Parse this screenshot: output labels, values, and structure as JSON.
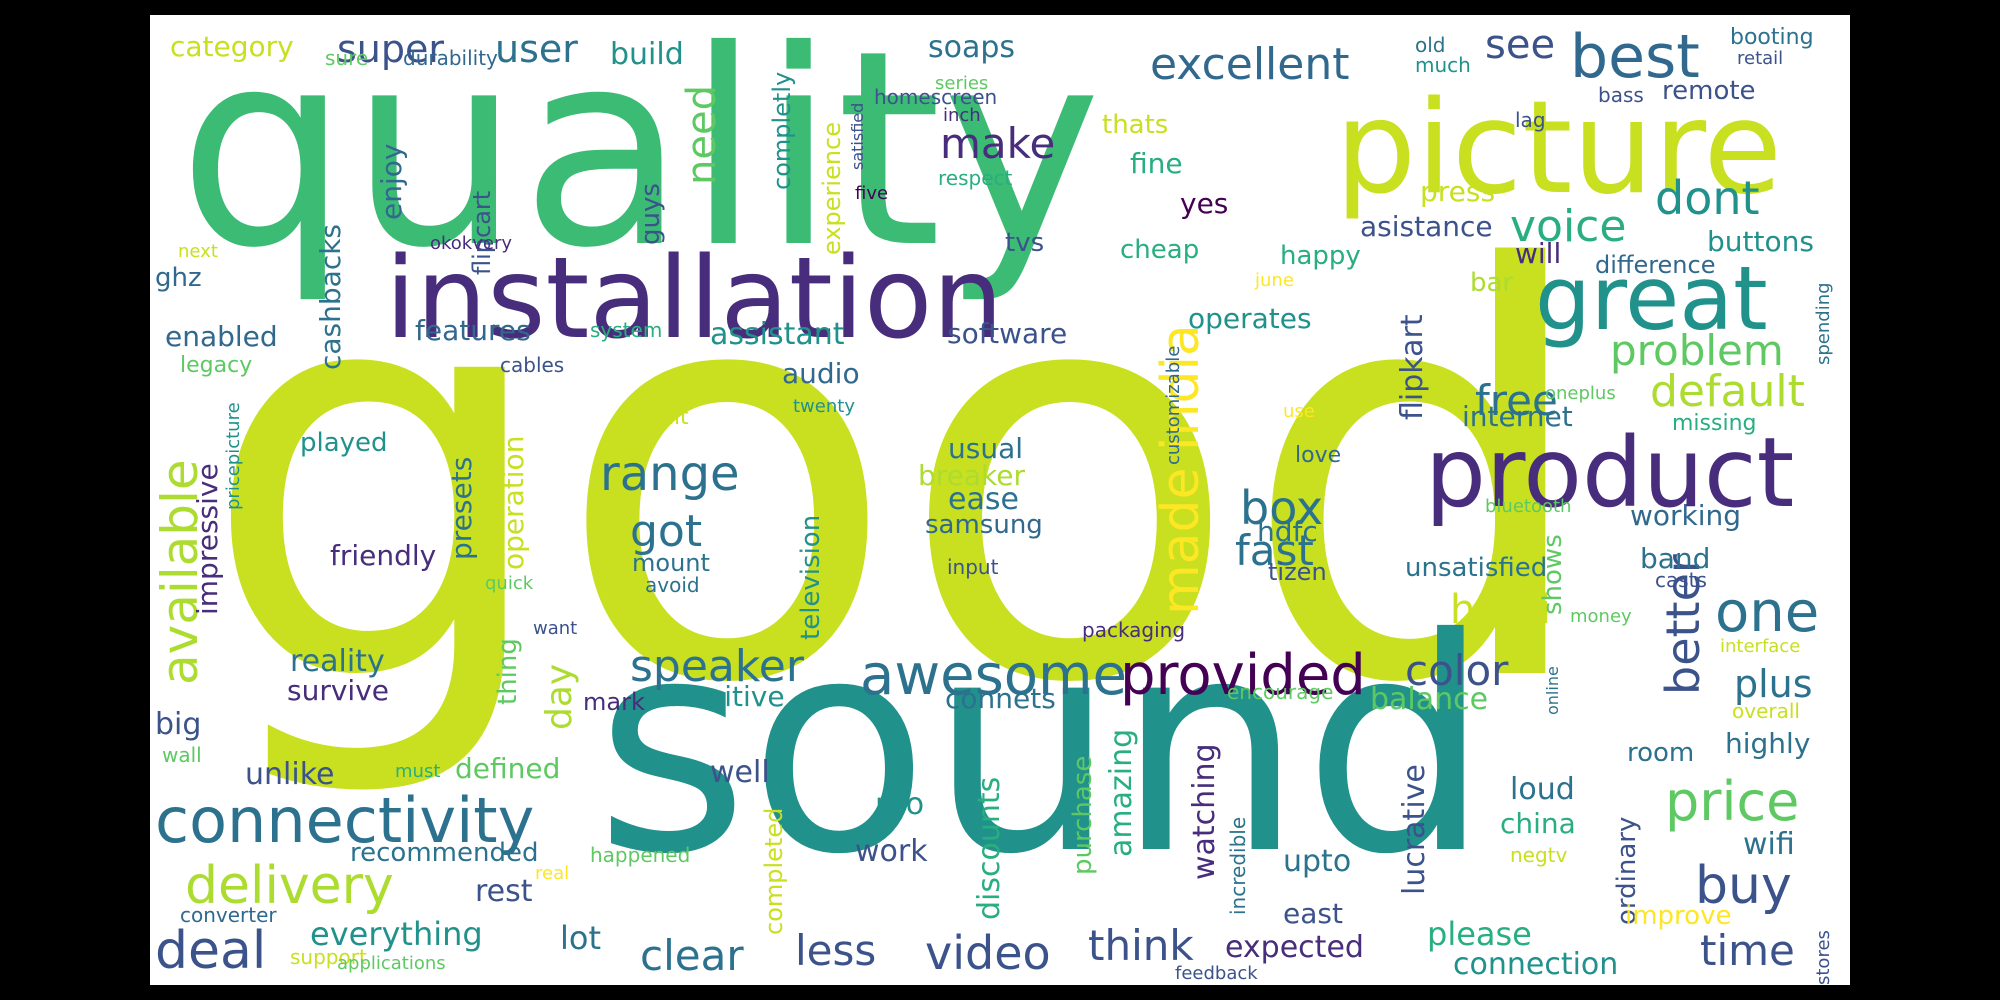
{
  "palette": [
    "#440154",
    "#472d7b",
    "#3b528b",
    "#2c728e",
    "#21918c",
    "#28ae80",
    "#5ec962",
    "#addc30",
    "#c8e020",
    "#fde725"
  ],
  "words": [
    {
      "id": "good",
      "text": "good",
      "color": "#c8e020"
    },
    {
      "id": "quality",
      "text": "quality",
      "color": "#3cbb75"
    },
    {
      "id": "sound",
      "text": "sound",
      "color": "#21918c"
    },
    {
      "id": "installation",
      "text": "installation",
      "color": "#472d7b"
    },
    {
      "id": "picture",
      "text": "picture",
      "color": "#c8e020"
    },
    {
      "id": "great",
      "text": "great",
      "color": "#21918c"
    },
    {
      "id": "product",
      "text": "product",
      "color": "#472d7b"
    },
    {
      "id": "best",
      "text": "best",
      "color": "#31688e"
    },
    {
      "id": "awesome",
      "text": "awesome",
      "color": "#2c728e"
    },
    {
      "id": "provided",
      "text": "provided",
      "color": "#440154"
    },
    {
      "id": "connectivity",
      "text": "connectivity",
      "color": "#2c728e"
    },
    {
      "id": "delivery",
      "text": "delivery",
      "color": "#addc30"
    },
    {
      "id": "excellent",
      "text": "excellent",
      "color": "#31688e"
    },
    {
      "id": "price",
      "text": "price",
      "color": "#5ec962"
    },
    {
      "id": "deal",
      "text": "deal",
      "color": "#3b528b"
    },
    {
      "id": "video",
      "text": "video",
      "color": "#3b528b"
    },
    {
      "id": "buy",
      "text": "buy",
      "color": "#3b528b"
    },
    {
      "id": "one",
      "text": "one",
      "color": "#2c728e"
    },
    {
      "id": "clear",
      "text": "clear",
      "color": "#2c728e"
    },
    {
      "id": "less",
      "text": "less",
      "color": "#3b528b"
    },
    {
      "id": "think",
      "text": "think",
      "color": "#3b528b"
    },
    {
      "id": "time",
      "text": "time",
      "color": "#3b528b"
    },
    {
      "id": "dont",
      "text": "dont",
      "color": "#21918c"
    },
    {
      "id": "voice",
      "text": "voice",
      "color": "#28ae80"
    },
    {
      "id": "problem",
      "text": "problem",
      "color": "#5ec962"
    },
    {
      "id": "default",
      "text": "default",
      "color": "#addc30"
    },
    {
      "id": "range",
      "text": "range",
      "color": "#2c728e"
    },
    {
      "id": "speaker",
      "text": "speaker",
      "color": "#2c728e"
    },
    {
      "id": "color",
      "text": "color",
      "color": "#3b528b"
    },
    {
      "id": "made-india",
      "text": "made india",
      "color": "#fde725"
    },
    {
      "id": "available",
      "text": "available",
      "color": "#addc30"
    },
    {
      "id": "box",
      "text": "box",
      "color": "#2c728e"
    },
    {
      "id": "fast",
      "text": "fast",
      "color": "#2c728e"
    },
    {
      "id": "got",
      "text": "got",
      "color": "#2c728e"
    },
    {
      "id": "free",
      "text": "free",
      "color": "#2c728e"
    },
    {
      "id": "better",
      "text": "better",
      "color": "#3b528b"
    },
    {
      "id": "make",
      "text": "make",
      "color": "#472d7b"
    },
    {
      "id": "need",
      "text": "need",
      "color": "#5ec962"
    },
    {
      "id": "super",
      "text": "super",
      "color": "#3b528b"
    },
    {
      "id": "user",
      "text": "user",
      "color": "#2c728e"
    },
    {
      "id": "see",
      "text": "see",
      "color": "#3b528b"
    },
    {
      "id": "hdmi",
      "text": "hdmi",
      "color": "#c8e020"
    },
    {
      "id": "plus",
      "text": "plus",
      "color": "#2c728e"
    },
    {
      "id": "category",
      "text": "category",
      "color": "#c8e020"
    },
    {
      "id": "soaps",
      "text": "soaps",
      "color": "#2c728e"
    },
    {
      "id": "build",
      "text": "build",
      "color": "#21918c"
    },
    {
      "id": "enjoy",
      "text": "enjoy",
      "color": "#31688e"
    },
    {
      "id": "flipcart",
      "text": "flipcart",
      "color": "#3b528b"
    },
    {
      "id": "completly",
      "text": "completly",
      "color": "#21918c"
    },
    {
      "id": "experience",
      "text": "experience",
      "color": "#c8e020"
    },
    {
      "id": "cashbacks",
      "text": "cashbacks",
      "color": "#2c728e"
    },
    {
      "id": "ghz",
      "text": "ghz",
      "color": "#31688e"
    },
    {
      "id": "guys",
      "text": "guys",
      "color": "#3b528b"
    },
    {
      "id": "thats",
      "text": "thats",
      "color": "#c8e020"
    },
    {
      "id": "fine",
      "text": "fine",
      "color": "#28ae80"
    },
    {
      "id": "press",
      "text": "press",
      "color": "#c8e020"
    },
    {
      "id": "yes",
      "text": "yes",
      "color": "#440154"
    },
    {
      "id": "asistance",
      "text": "asistance",
      "color": "#3b528b"
    },
    {
      "id": "tvs",
      "text": "tvs",
      "color": "#3b528b"
    },
    {
      "id": "cheap",
      "text": "cheap",
      "color": "#28ae80"
    },
    {
      "id": "will",
      "text": "will",
      "color": "#472d7b"
    },
    {
      "id": "happy",
      "text": "happy",
      "color": "#28ae80"
    },
    {
      "id": "buttons",
      "text": "buttons",
      "color": "#21918c"
    },
    {
      "id": "difference",
      "text": "difference",
      "color": "#31688e"
    },
    {
      "id": "bar",
      "text": "bar",
      "color": "#addc30"
    },
    {
      "id": "enabled",
      "text": "enabled",
      "color": "#31688e"
    },
    {
      "id": "features",
      "text": "features",
      "color": "#31688e"
    },
    {
      "id": "assistant",
      "text": "assistant",
      "color": "#21918c"
    },
    {
      "id": "software",
      "text": "software",
      "color": "#3b528b"
    },
    {
      "id": "operates",
      "text": "operates",
      "color": "#21918c"
    },
    {
      "id": "flipkart",
      "text": "flipkart",
      "color": "#3b528b"
    },
    {
      "id": "internet",
      "text": "internet",
      "color": "#2c728e"
    },
    {
      "id": "audio",
      "text": "audio",
      "color": "#31688e"
    },
    {
      "id": "usual",
      "text": "usual",
      "color": "#2c728e"
    },
    {
      "id": "breaker",
      "text": "breaker",
      "color": "#addc30"
    },
    {
      "id": "ease",
      "text": "ease",
      "color": "#2c728e"
    },
    {
      "id": "samsung",
      "text": "samsung",
      "color": "#31688e"
    },
    {
      "id": "friendly",
      "text": "friendly",
      "color": "#472d7b"
    },
    {
      "id": "hdfc",
      "text": "hdfc",
      "color": "#2c728e"
    },
    {
      "id": "working",
      "text": "working",
      "color": "#31688e"
    },
    {
      "id": "band",
      "text": "band",
      "color": "#2c728e"
    },
    {
      "id": "unsatisfied",
      "text": "unsatisfied",
      "color": "#2c728e"
    },
    {
      "id": "presets",
      "text": "presets",
      "color": "#2c728e"
    },
    {
      "id": "operation",
      "text": "operation",
      "color": "#c8e020"
    },
    {
      "id": "impressive",
      "text": "impressive",
      "color": "#472d7b"
    },
    {
      "id": "played",
      "text": "played",
      "color": "#21918c"
    },
    {
      "id": "television",
      "text": "television",
      "color": "#21918c"
    },
    {
      "id": "mount",
      "text": "mount",
      "color": "#2c728e"
    },
    {
      "id": "avoid",
      "text": "avoid",
      "color": "#2c728e"
    },
    {
      "id": "input",
      "text": "input",
      "color": "#3b528b"
    },
    {
      "id": "tizen",
      "text": "tizen",
      "color": "#3b528b"
    },
    {
      "id": "shows",
      "text": "shows",
      "color": "#5ec962"
    },
    {
      "id": "casts",
      "text": "casts",
      "color": "#3b528b"
    },
    {
      "id": "reality",
      "text": "reality",
      "color": "#2c728e"
    },
    {
      "id": "survive",
      "text": "survive",
      "color": "#472d7b"
    },
    {
      "id": "thing",
      "text": "thing",
      "color": "#5ec962"
    },
    {
      "id": "day",
      "text": "day",
      "color": "#addc30"
    },
    {
      "id": "mark",
      "text": "mark",
      "color": "#472d7b"
    },
    {
      "id": "intuitive",
      "text": "intuitive",
      "color": "#21918c"
    },
    {
      "id": "connets",
      "text": "connets",
      "color": "#2c728e"
    },
    {
      "id": "balance",
      "text": "balance",
      "color": "#5ec962"
    },
    {
      "id": "room",
      "text": "room",
      "color": "#2c728e"
    },
    {
      "id": "highly",
      "text": "highly",
      "color": "#2c728e"
    },
    {
      "id": "big",
      "text": "big",
      "color": "#3b528b"
    },
    {
      "id": "unlike",
      "text": "unlike",
      "color": "#3b528b"
    },
    {
      "id": "defined",
      "text": "defined",
      "color": "#5ec962"
    },
    {
      "id": "well",
      "text": "well",
      "color": "#3b528b"
    },
    {
      "id": "pro",
      "text": "pro",
      "color": "#21918c"
    },
    {
      "id": "work",
      "text": "work",
      "color": "#3b528b"
    },
    {
      "id": "discounts",
      "text": "discounts",
      "color": "#28ae80"
    },
    {
      "id": "amazing",
      "text": "amazing",
      "color": "#28ae80"
    },
    {
      "id": "watching",
      "text": "watching",
      "color": "#472d7b"
    },
    {
      "id": "purchase",
      "text": "purchase",
      "color": "#5ec962"
    },
    {
      "id": "completed",
      "text": "completed",
      "color": "#c8e020"
    },
    {
      "id": "lucrative",
      "text": "lucrative",
      "color": "#3b528b"
    },
    {
      "id": "upto",
      "text": "upto",
      "color": "#2c728e"
    },
    {
      "id": "loud",
      "text": "loud",
      "color": "#2c728e"
    },
    {
      "id": "china",
      "text": "china",
      "color": "#28ae80"
    },
    {
      "id": "ordinary",
      "text": "ordinary",
      "color": "#3b528b"
    },
    {
      "id": "wifi",
      "text": "wifi",
      "color": "#2c728e"
    },
    {
      "id": "recommended",
      "text": "recommended",
      "color": "#2c728e"
    },
    {
      "id": "rest",
      "text": "rest",
      "color": "#3b528b"
    },
    {
      "id": "everything",
      "text": "everything",
      "color": "#21918c"
    },
    {
      "id": "lot",
      "text": "lot",
      "color": "#2c728e"
    },
    {
      "id": "expected",
      "text": "expected",
      "color": "#472d7b"
    },
    {
      "id": "east",
      "text": "east",
      "color": "#3b528b"
    },
    {
      "id": "please",
      "text": "please",
      "color": "#28ae80"
    },
    {
      "id": "connection",
      "text": "connection",
      "color": "#21918c"
    },
    {
      "id": "improve",
      "text": "improve",
      "color": "#fde725"
    },
    {
      "id": "stores",
      "text": "stores",
      "color": "#3b528b"
    },
    {
      "id": "sure",
      "text": "sure",
      "color": "#5ec962"
    },
    {
      "id": "durability",
      "text": "durability",
      "color": "#31688e"
    },
    {
      "id": "homescreen",
      "text": "homescreen",
      "color": "#3b528b"
    },
    {
      "id": "series",
      "text": "series",
      "color": "#5ec962"
    },
    {
      "id": "inch",
      "text": "inch",
      "color": "#472d7b"
    },
    {
      "id": "satisfied",
      "text": "satisfied",
      "color": "#3b528b"
    },
    {
      "id": "respect",
      "text": "respect",
      "color": "#28ae80"
    },
    {
      "id": "five",
      "text": "five",
      "color": "#440154"
    },
    {
      "id": "old",
      "text": "old",
      "color": "#2c728e"
    },
    {
      "id": "much",
      "text": "much",
      "color": "#21918c"
    },
    {
      "id": "lag",
      "text": "lag",
      "color": "#3b528b"
    },
    {
      "id": "bass",
      "text": "bass",
      "color": "#3b528b"
    },
    {
      "id": "remote",
      "text": "remote",
      "color": "#3b528b"
    },
    {
      "id": "booting",
      "text": "booting",
      "color": "#2c728e"
    },
    {
      "id": "retail",
      "text": "retail",
      "color": "#3b528b"
    },
    {
      "id": "next",
      "text": "next",
      "color": "#c8e020"
    },
    {
      "id": "okokvery",
      "text": "okokvery",
      "color": "#472d7b"
    },
    {
      "id": "legacy",
      "text": "legacy",
      "color": "#5ec962"
    },
    {
      "id": "system",
      "text": "system",
      "color": "#28ae80"
    },
    {
      "id": "cables",
      "text": "cables",
      "color": "#3b528b"
    },
    {
      "id": "pricepicture",
      "text": "pricepicture",
      "color": "#21918c"
    },
    {
      "id": "nit",
      "text": "nit",
      "color": "#c8e020"
    },
    {
      "id": "twenty",
      "text": "twenty",
      "color": "#21918c"
    },
    {
      "id": "customizable",
      "text": "customizable",
      "color": "#31688e"
    },
    {
      "id": "june",
      "text": "june",
      "color": "#fde725"
    },
    {
      "id": "spending",
      "text": "spending",
      "color": "#2c728e"
    },
    {
      "id": "oneplus",
      "text": "oneplus",
      "color": "#5ec962"
    },
    {
      "id": "use",
      "text": "use",
      "color": "#fde725"
    },
    {
      "id": "missing",
      "text": "missing",
      "color": "#28ae80"
    },
    {
      "id": "love",
      "text": "love",
      "color": "#31688e"
    },
    {
      "id": "bluetooth",
      "text": "bluetooth",
      "color": "#5ec962"
    },
    {
      "id": "quick",
      "text": "quick",
      "color": "#5ec962"
    },
    {
      "id": "want",
      "text": "want",
      "color": "#3b528b"
    },
    {
      "id": "packaging",
      "text": "packaging",
      "color": "#472d7b"
    },
    {
      "id": "money",
      "text": "money",
      "color": "#5ec962"
    },
    {
      "id": "online",
      "text": "online",
      "color": "#2c728e"
    },
    {
      "id": "interface",
      "text": "interface",
      "color": "#c8e020"
    },
    {
      "id": "encourage",
      "text": "encourage",
      "color": "#5ec962"
    },
    {
      "id": "overall",
      "text": "overall",
      "color": "#c8e020"
    },
    {
      "id": "wall",
      "text": "wall",
      "color": "#5ec962"
    },
    {
      "id": "must",
      "text": "must",
      "color": "#28ae80"
    },
    {
      "id": "incredible",
      "text": "incredible",
      "color": "#2c728e"
    },
    {
      "id": "happened",
      "text": "happened",
      "color": "#5ec962"
    },
    {
      "id": "real",
      "text": "real",
      "color": "#fde725"
    },
    {
      "id": "negtv",
      "text": "negtv",
      "color": "#c8e020"
    },
    {
      "id": "converter",
      "text": "converter",
      "color": "#31688e"
    },
    {
      "id": "support",
      "text": "support",
      "color": "#c8e020"
    },
    {
      "id": "applications",
      "text": "applications",
      "color": "#5ec962"
    },
    {
      "id": "feedback",
      "text": "feedback",
      "color": "#3b528b"
    }
  ]
}
